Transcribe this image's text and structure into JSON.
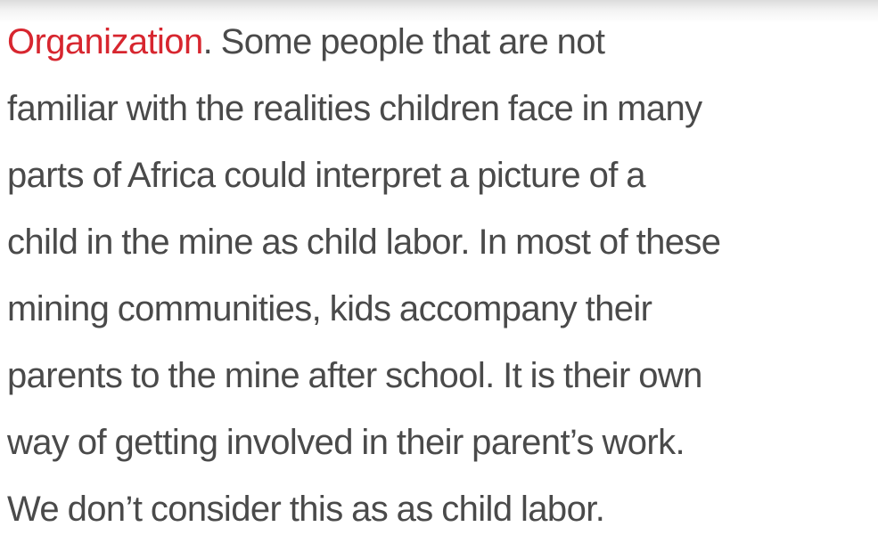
{
  "article": {
    "link_text": "Organization",
    "first_line_rest": ". Some people that are not",
    "lines": [
      "familiar with the realities children face in many",
      "parts of Africa could interpret a picture of a",
      "child in the mine as child labor. In most of these",
      "mining communities, kids accompany their",
      "parents to the mine after school. It is their own",
      "way of getting involved in their parent’s work.",
      "We don’t consider this as as child labor."
    ]
  },
  "colors": {
    "text": "#4a4a4a",
    "link": "#d7262f",
    "background": "#ffffff"
  }
}
